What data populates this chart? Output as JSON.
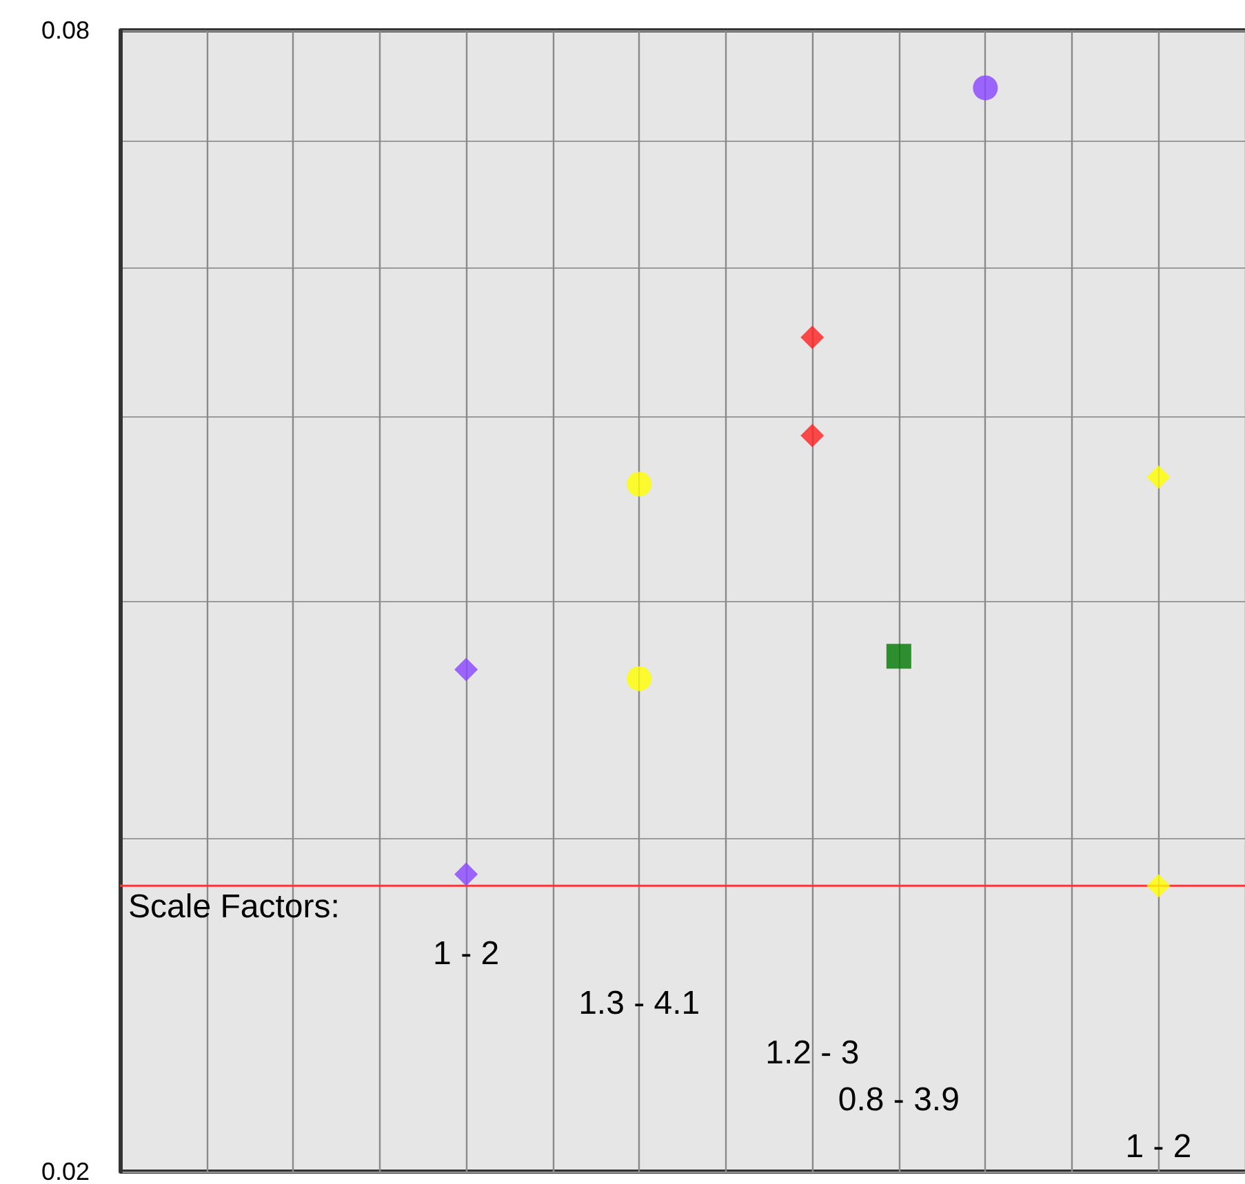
{
  "chart_data": {
    "type": "scatter",
    "log": "y",
    "grid": true,
    "tick_labels": "y",
    "categories": [
      null,
      null,
      null,
      null,
      null,
      null,
      null,
      null,
      null,
      null,
      null,
      null,
      null,
      null
    ],
    "ylim": [
      0.02,
      0.08
    ],
    "yticks": [
      0.02,
      {
        "value": 0.03,
        "label": null
      },
      {
        "value": 0.04,
        "label": null
      },
      {
        "value": 0.05,
        "label": null
      },
      {
        "value": 0.06,
        "label": null
      },
      {
        "value": 0.07,
        "label": null
      },
      0.08
    ],
    "series": [
      {
        "color": "#8844ff",
        "marker": "diamond",
        "values": [
          null,
          null,
          null,
          null,
          0.0287,
          null,
          null,
          null,
          null,
          null,
          null,
          null,
          null,
          null
        ]
      },
      {
        "color": "#8844ff",
        "marker": "diamond",
        "values": [
          null,
          null,
          null,
          null,
          0.0368,
          null,
          null,
          null,
          null,
          null,
          null,
          null,
          null,
          null
        ]
      },
      {
        "color": "#ffff00",
        "marker": "circle",
        "values": [
          null,
          null,
          null,
          null,
          null,
          null,
          0.0364,
          null,
          null,
          null,
          null,
          null,
          null,
          null
        ]
      },
      {
        "color": "#ffff00",
        "marker": "circle",
        "values": [
          null,
          null,
          null,
          null,
          null,
          null,
          0.0461,
          null,
          null,
          null,
          null,
          null,
          null,
          null
        ]
      },
      {
        "color": "#ff2020",
        "marker": "diamond",
        "values": [
          null,
          null,
          null,
          null,
          null,
          null,
          null,
          null,
          0.0489,
          null,
          null,
          null,
          null,
          null
        ]
      },
      {
        "color": "#ff2020",
        "marker": "diamond",
        "values": [
          null,
          null,
          null,
          null,
          null,
          null,
          null,
          null,
          0.0551,
          null,
          null,
          null,
          null,
          null
        ]
      },
      {
        "color": "#007700",
        "marker": "square",
        "values": [
          null,
          null,
          null,
          null,
          null,
          null,
          null,
          null,
          null,
          0.0374,
          null,
          null,
          null,
          null
        ]
      },
      {
        "color": "#8844ff",
        "marker": "circle",
        "values": [
          null,
          null,
          null,
          null,
          null,
          null,
          null,
          null,
          null,
          null,
          0.0746,
          null,
          null,
          null
        ]
      },
      {
        "color": "#ffff00",
        "marker": "diamond",
        "values": [
          null,
          null,
          null,
          null,
          null,
          null,
          null,
          null,
          null,
          null,
          null,
          null,
          0.0283,
          null
        ]
      },
      {
        "color": "#ffff00",
        "marker": "diamond",
        "values": [
          null,
          null,
          null,
          null,
          null,
          null,
          null,
          null,
          null,
          null,
          null,
          null,
          0.0465,
          null
        ]
      }
    ],
    "ref_lines": [
      {
        "axis": "y",
        "value": 0.0283,
        "label": null,
        "color": "#ff3333"
      }
    ],
    "annotations": [
      "Scale Factors:",
      "1 - 2",
      "1.3 - 4.1",
      "1.2 - 3",
      "0.8 - 3.9",
      "1 - 2"
    ]
  }
}
